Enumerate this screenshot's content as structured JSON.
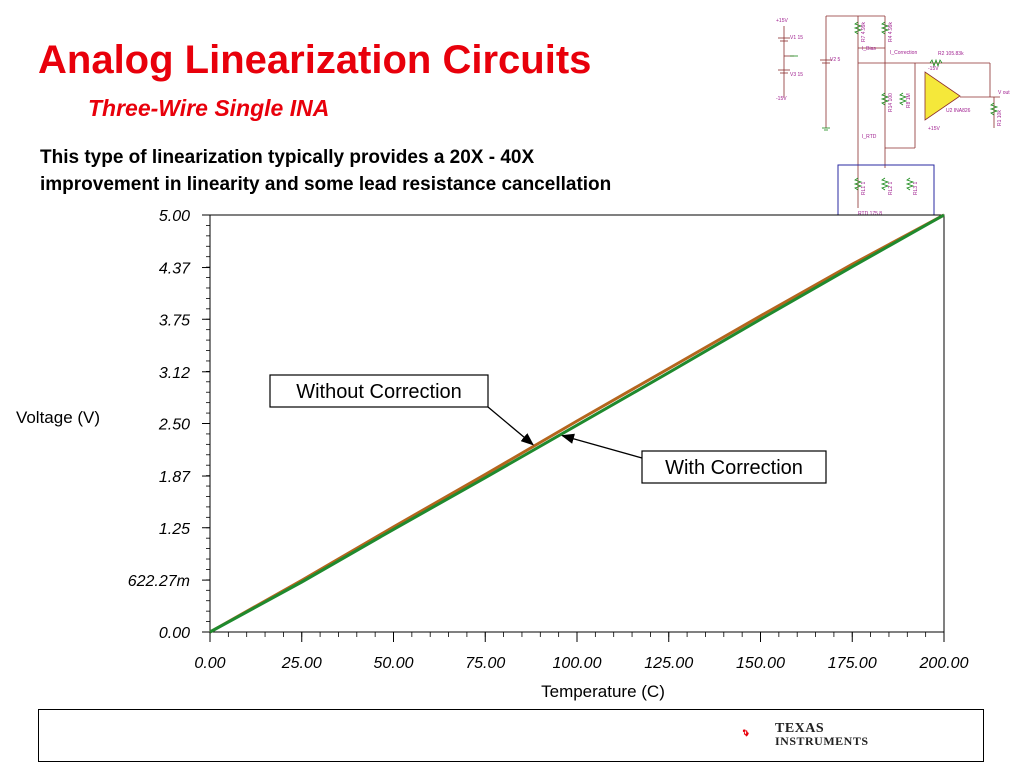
{
  "slide": {
    "title": "Analog Linearization Circuits",
    "subtitle": "Three-Wire Single INA",
    "description": [
      "This type of linearization typically provides a 20X -  40X",
      "improvement in linearity and some lead resistance cancellation"
    ]
  },
  "schematic": {
    "labels": {
      "v1_supply": "+15V",
      "v1": "V1 15",
      "v3": "V3 15",
      "v3_supply": "-15V",
      "v2": "V2 5",
      "r7": "R7 4.99k",
      "r4": "R4 4.99k",
      "i_bias": "I_Bias",
      "i_correction": "I_Correction",
      "r2": "R2 105.83k",
      "op_neg_supply": "-15V",
      "op_pos_supply": "+15V",
      "vout": "V out",
      "r14": "R14 100",
      "r8": "R8 1M",
      "u2": "U2 INA826",
      "r1": "R1 10k",
      "i_rtd": "I_RTD",
      "rl1": "RL1 1",
      "rl2": "RL2 1",
      "rl3": "RL3 1",
      "rtd": "RTD 175.8"
    }
  },
  "chart_data": {
    "type": "line",
    "xlabel": "Temperature (C)",
    "ylabel": "Voltage (V)",
    "xlim": [
      0,
      200
    ],
    "ylim": [
      0,
      5
    ],
    "x_ticks": [
      0,
      25,
      50,
      75,
      100,
      125,
      150,
      175,
      200
    ],
    "x_tick_labels": [
      "0.00",
      "25.00",
      "50.00",
      "75.00",
      "100.00",
      "125.00",
      "150.00",
      "175.00",
      "200.00"
    ],
    "y_ticks": [
      0,
      0.62227,
      1.25,
      1.87,
      2.5,
      3.12,
      3.75,
      4.37,
      5.0
    ],
    "y_tick_labels": [
      "0.00",
      "622.27m",
      "1.25",
      "1.87",
      "2.50",
      "3.12",
      "3.75",
      "4.37",
      "5.00"
    ],
    "grid": false,
    "series": [
      {
        "name": "Without Correction",
        "color": "#b5651d",
        "x": [
          0,
          25,
          50,
          75,
          100,
          125,
          150,
          175,
          200
        ],
        "y": [
          0.0,
          0.62,
          1.26,
          1.89,
          2.53,
          3.16,
          3.79,
          4.41,
          5.0
        ]
      },
      {
        "name": "With Correction",
        "color": "#1f8a2e",
        "x": [
          0,
          25,
          50,
          75,
          100,
          125,
          150,
          175,
          200
        ],
        "y": [
          0.0,
          0.6,
          1.23,
          1.85,
          2.48,
          3.11,
          3.75,
          4.38,
          5.0
        ]
      }
    ],
    "annotations": [
      {
        "text": "Without Correction",
        "target_series": 0
      },
      {
        "text": "With Correction",
        "target_series": 1
      }
    ]
  },
  "footer": {
    "logo_line1": "TEXAS",
    "logo_line2": "INSTRUMENTS",
    "logo_color": "#e8000b"
  }
}
